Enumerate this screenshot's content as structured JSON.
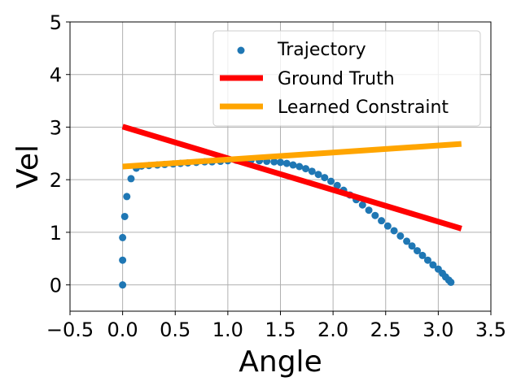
{
  "chart_data": {
    "type": "scatter",
    "title": "",
    "xlabel": "Angle",
    "ylabel": "Vel",
    "xlim": [
      -0.5,
      3.5
    ],
    "ylim": [
      -0.5,
      5
    ],
    "xticks": [
      "−0.5",
      "0.0",
      "0.5",
      "1.0",
      "1.5",
      "2.0",
      "2.5",
      "3.0",
      "3.5"
    ],
    "xtick_values": [
      -0.5,
      0.0,
      0.5,
      1.0,
      1.5,
      2.0,
      2.5,
      3.0,
      3.5
    ],
    "yticks": [
      "0",
      "1",
      "2",
      "3",
      "4",
      "5"
    ],
    "ytick_values": [
      0,
      1,
      2,
      3,
      4,
      5
    ],
    "grid": true,
    "legend_position": "top-right",
    "series": [
      {
        "name": "Trajectory",
        "kind": "scatter",
        "color": "#1f77b4",
        "points": [
          [
            0.0,
            0.0
          ],
          [
            0.0,
            0.47
          ],
          [
            0.0,
            0.9
          ],
          [
            0.02,
            1.3
          ],
          [
            0.04,
            1.68
          ],
          [
            0.08,
            2.02
          ],
          [
            0.13,
            2.22
          ],
          [
            0.18,
            2.26
          ],
          [
            0.25,
            2.27
          ],
          [
            0.33,
            2.28
          ],
          [
            0.4,
            2.29
          ],
          [
            0.48,
            2.3
          ],
          [
            0.55,
            2.31
          ],
          [
            0.62,
            2.32
          ],
          [
            0.7,
            2.33
          ],
          [
            0.78,
            2.34
          ],
          [
            0.85,
            2.34
          ],
          [
            0.93,
            2.35
          ],
          [
            1.0,
            2.36
          ],
          [
            1.08,
            2.37
          ],
          [
            1.15,
            2.37
          ],
          [
            1.22,
            2.37
          ],
          [
            1.3,
            2.36
          ],
          [
            1.37,
            2.35
          ],
          [
            1.44,
            2.34
          ],
          [
            1.5,
            2.33
          ],
          [
            1.56,
            2.31
          ],
          [
            1.62,
            2.28
          ],
          [
            1.68,
            2.25
          ],
          [
            1.74,
            2.21
          ],
          [
            1.8,
            2.16
          ],
          [
            1.86,
            2.1
          ],
          [
            1.92,
            2.04
          ],
          [
            1.98,
            1.97
          ],
          [
            2.04,
            1.89
          ],
          [
            2.1,
            1.8
          ],
          [
            2.16,
            1.71
          ],
          [
            2.22,
            1.62
          ],
          [
            2.28,
            1.52
          ],
          [
            2.34,
            1.42
          ],
          [
            2.4,
            1.32
          ],
          [
            2.46,
            1.22
          ],
          [
            2.52,
            1.12
          ],
          [
            2.58,
            1.03
          ],
          [
            2.64,
            0.93
          ],
          [
            2.7,
            0.83
          ],
          [
            2.75,
            0.74
          ],
          [
            2.8,
            0.65
          ],
          [
            2.85,
            0.56
          ],
          [
            2.9,
            0.47
          ],
          [
            2.95,
            0.38
          ],
          [
            3.0,
            0.3
          ],
          [
            3.04,
            0.22
          ],
          [
            3.07,
            0.15
          ],
          [
            3.1,
            0.09
          ],
          [
            3.12,
            0.05
          ]
        ]
      },
      {
        "name": "Ground Truth",
        "kind": "line",
        "color": "#ff0000",
        "points": [
          [
            0.0,
            3.01
          ],
          [
            3.22,
            1.07
          ]
        ]
      },
      {
        "name": "Learned Constraint",
        "kind": "line",
        "color": "#ffa500",
        "points": [
          [
            0.0,
            2.25
          ],
          [
            3.22,
            2.68
          ]
        ]
      }
    ]
  }
}
